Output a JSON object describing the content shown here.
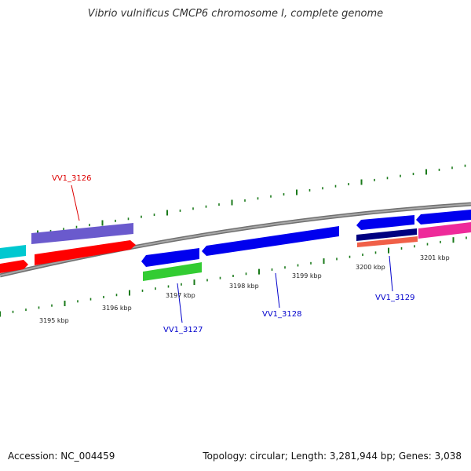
{
  "title": "Vibrio vulnificus CMCP6 chromosome I, complete genome",
  "footer": {
    "accession": "Accession: NC_004459",
    "summary": "Topology: circular; Length: 3,281,944 bp; Genes: 3,038"
  },
  "ticks": [
    {
      "label": "3195 kbp",
      "kbp": 3195
    },
    {
      "label": "3196 kbp",
      "kbp": 3196
    },
    {
      "label": "3197 kbp",
      "kbp": 3197
    },
    {
      "label": "3198 kbp",
      "kbp": 3198
    },
    {
      "label": "3199 kbp",
      "kbp": 3199
    },
    {
      "label": "3200 kbp",
      "kbp": 3200
    },
    {
      "label": "3201 kbp",
      "kbp": 3201
    }
  ],
  "gene_labels": [
    {
      "label": "VV1_3126",
      "color": "#dd0000"
    },
    {
      "label": "VV1_3127",
      "color": "#0000cc"
    },
    {
      "label": "VV1_3128",
      "color": "#0000cc"
    },
    {
      "label": "VV1_3129",
      "color": "#0000cc"
    }
  ],
  "colors": {
    "backbone": "#888888",
    "dots": "#1a7a1a",
    "red": "#ff0000",
    "blue": "#0000ee",
    "purple": "#6a5acd",
    "cyan": "#00c8d0",
    "green": "#33cc33",
    "navy": "#000080",
    "salmon": "#f06048",
    "magenta": "#ee2a9a"
  }
}
